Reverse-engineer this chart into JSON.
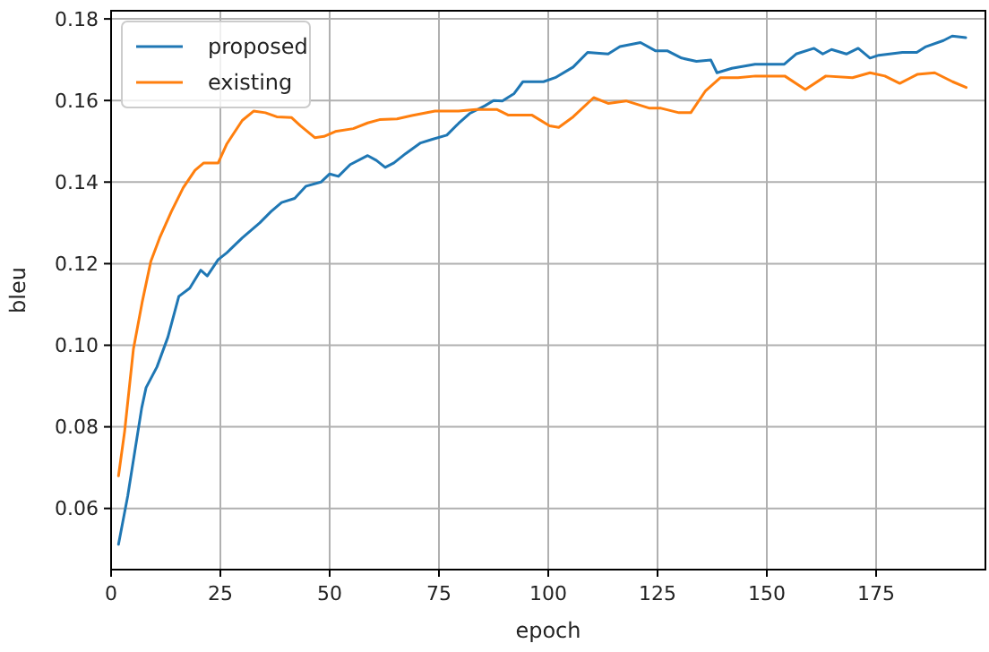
{
  "chart_data": {
    "type": "line",
    "xlabel": "epoch",
    "ylabel": "bleu",
    "xlim": [
      0,
      200
    ],
    "ylim": [
      0.045,
      0.182
    ],
    "xticks": [
      0,
      25,
      50,
      75,
      100,
      125,
      150,
      175
    ],
    "yticks": [
      0.06,
      0.08,
      {
        "value": 0.1,
        "label": "0.10"
      },
      0.12,
      0.14,
      0.16,
      0.18
    ],
    "grid": true,
    "legend": "top left",
    "marker": "none",
    "line_style": "solid",
    "series": [
      {
        "name": "proposed",
        "color": "#1f77b4",
        "x": [
          1.7,
          3.8,
          7,
          8,
          10.5,
          13,
          15.5,
          18,
          20.5,
          22,
          24.5,
          26.5,
          30,
          34,
          36.6,
          39,
          42,
          44.6,
          48,
          50,
          52,
          54.7,
          58.7,
          60.7,
          62.7,
          64.7,
          67.4,
          70.8,
          73.5,
          76.8,
          79.5,
          82,
          85.5,
          87.5,
          89.5,
          92.2,
          94.2,
          98.9,
          101.6,
          105.7,
          109,
          113.7,
          116.4,
          121.1,
          124.5,
          127.2,
          130.5,
          133.9,
          137.2,
          138.6,
          142,
          147.3,
          154,
          156.7,
          160.8,
          162.8,
          164.8,
          168.2,
          170.9,
          173.6,
          175.6,
          181,
          184.3,
          186.4,
          190.4,
          192.4,
          195.5
        ],
        "values": [
          0.0512,
          0.063,
          0.0846,
          0.0896,
          0.0947,
          0.102,
          0.112,
          0.114,
          0.1184,
          0.117,
          0.121,
          0.1227,
          0.1263,
          0.13,
          0.1328,
          0.135,
          0.136,
          0.139,
          0.14,
          0.142,
          0.1414,
          0.1443,
          0.1465,
          0.1453,
          0.1436,
          0.1447,
          0.147,
          0.1496,
          0.1505,
          0.1515,
          0.1544,
          0.1568,
          0.1587,
          0.16,
          0.1599,
          0.1617,
          0.1646,
          0.1646,
          0.1656,
          0.1682,
          0.1718,
          0.1714,
          0.1732,
          0.1742,
          0.1722,
          0.1722,
          0.1704,
          0.1696,
          0.1699,
          0.1668,
          0.1679,
          0.1689,
          0.1689,
          0.1714,
          0.1728,
          0.1714,
          0.1725,
          0.1714,
          0.1728,
          0.1704,
          0.1711,
          0.1718,
          0.1718,
          0.1732,
          0.1747,
          0.1758,
          0.1754
        ]
      },
      {
        "name": "existing",
        "color": "#ff7f0e",
        "x": [
          1.7,
          3.1,
          5.1,
          7.1,
          9.1,
          11.1,
          13.8,
          16.5,
          19.2,
          21.2,
          24.5,
          26.5,
          30,
          32.6,
          35.3,
          37.9,
          41.3,
          43.3,
          46.6,
          48.7,
          51.3,
          55.4,
          58.7,
          61.4,
          65.4,
          68.8,
          74.1,
          79.5,
          83.5,
          88.2,
          90.9,
          96.3,
          100.3,
          102.4,
          105.7,
          110.4,
          113.7,
          117.8,
          123.2,
          125.8,
          129.9,
          132.6,
          136,
          139.4,
          143.4,
          147.4,
          154.1,
          158.8,
          163.5,
          169.6,
          173.6,
          177,
          180.4,
          184.4,
          188.4,
          192.5,
          195.6
        ],
        "values": [
          0.068,
          0.0789,
          0.099,
          0.1105,
          0.1206,
          0.1263,
          0.1328,
          0.1386,
          0.1429,
          0.1447,
          0.1447,
          0.1494,
          0.1551,
          0.1574,
          0.157,
          0.156,
          0.1558,
          0.1538,
          0.1509,
          0.1512,
          0.1524,
          0.1531,
          0.1545,
          0.1553,
          0.1555,
          0.1563,
          0.1574,
          0.1574,
          0.1578,
          0.1578,
          0.1564,
          0.1564,
          0.1538,
          0.1534,
          0.156,
          0.1607,
          0.1593,
          0.1599,
          0.1581,
          0.1581,
          0.157,
          0.157,
          0.1624,
          0.1656,
          0.1656,
          0.166,
          0.166,
          0.1627,
          0.166,
          0.1656,
          0.1668,
          0.166,
          0.1642,
          0.1664,
          0.1668,
          0.1646,
          0.1632
        ]
      }
    ]
  }
}
